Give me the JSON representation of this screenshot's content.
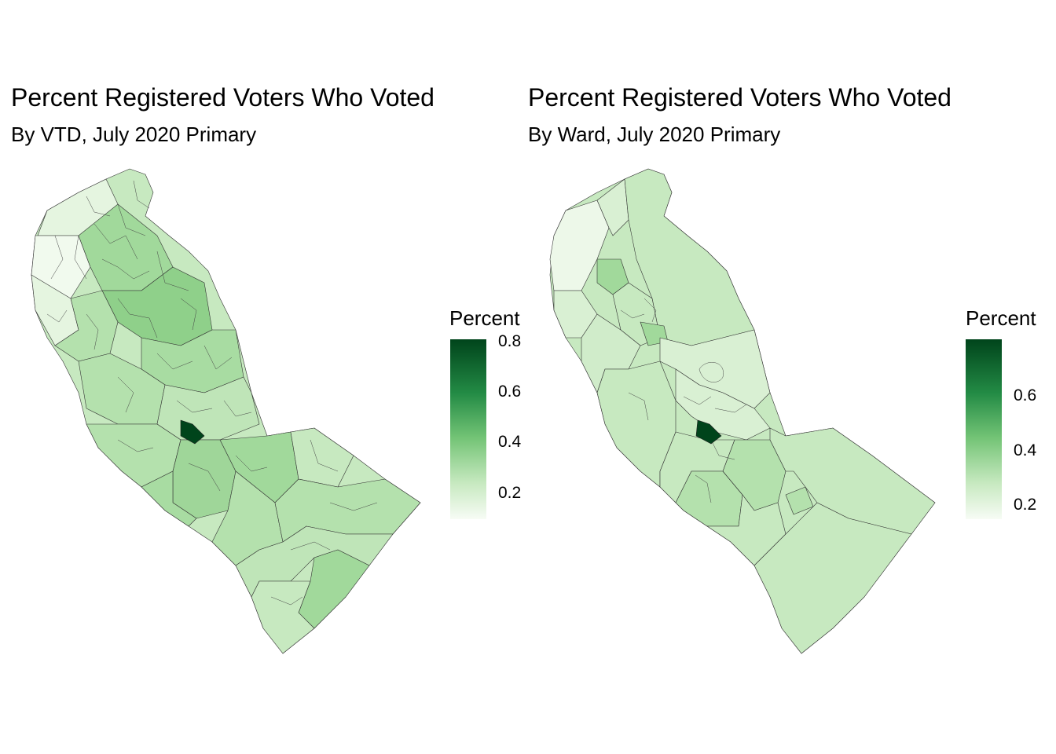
{
  "maps": [
    {
      "title": "Percent Registered Voters Who Voted",
      "subtitle": "By VTD, July 2020 Primary",
      "legend": {
        "title": "Percent",
        "ticks": [
          "0.8",
          "0.6",
          "0.4",
          "0.2"
        ]
      }
    },
    {
      "title": "Percent Registered Voters Who Voted",
      "subtitle": "By Ward, July 2020 Primary",
      "legend": {
        "title": "Percent",
        "ticks": [
          "0.6",
          "0.4",
          "0.2"
        ]
      }
    }
  ],
  "palette": {
    "low": "#f7fcf5",
    "mid": "#74c476",
    "high": "#00441b"
  }
}
